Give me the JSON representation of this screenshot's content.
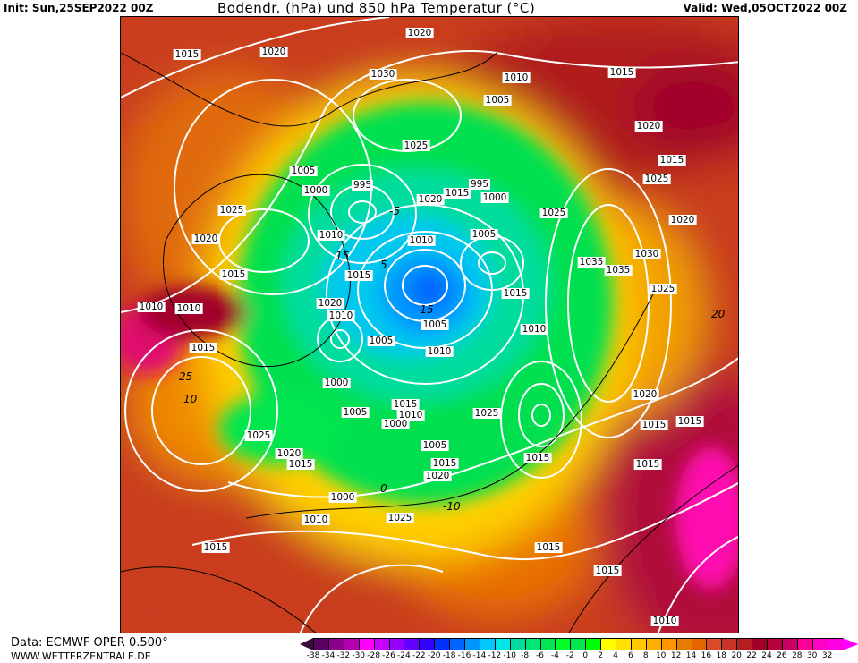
{
  "header": {
    "init": "Init: Sun,25SEP2022 00Z",
    "title": "Bodendr. (hPa) und 850 hPa Temperatur (°C)",
    "valid": "Valid: Wed,05OCT2022 00Z"
  },
  "footer": {
    "source": "Data: ECMWF OPER 0.500°",
    "site": "WWW.WETTERZENTRALE.DE"
  },
  "map": {
    "fields": [
      "surface pressure isobars (hPa)",
      "850 hPa temperature (°C)"
    ],
    "isobar_color": "#ffffff",
    "isotherm_color": "#000000",
    "pressure_labels": [
      "1015",
      "1020",
      "1020",
      "1030",
      "1010",
      "1015",
      "1005",
      "1020",
      "1025",
      "1005",
      "1015",
      "1000",
      "995",
      "995",
      "1025",
      "1020",
      "1015",
      "1000",
      "1025",
      "1025",
      "1020",
      "1020",
      "1010",
      "1010",
      "1005",
      "1035",
      "1035",
      "1030",
      "1015",
      "1015",
      "1025",
      "1015",
      "1010",
      "1010",
      "1020",
      "1010",
      "1005",
      "1010",
      "1005",
      "1015",
      "1010",
      "1000",
      "1015",
      "1010",
      "1005",
      "1000",
      "1025",
      "1020",
      "1015",
      "1015",
      "1025",
      "1005",
      "1020",
      "1015",
      "1015",
      "1020",
      "1015",
      "1015",
      "1000",
      "1010",
      "1025",
      "1015",
      "1015",
      "1015",
      "1010"
    ],
    "isotherm_labels": [
      "15",
      "10",
      "5",
      "0",
      "-5",
      "-10",
      "-15",
      "20",
      "25"
    ]
  },
  "colorbar": {
    "ticks": [
      "-38",
      "-34",
      "-32",
      "-30",
      "-28",
      "-26",
      "-24",
      "-22",
      "-20",
      "-18",
      "-16",
      "-14",
      "-12",
      "-10",
      "-8",
      "-6",
      "-4",
      "-2",
      "0",
      "2",
      "4",
      "6",
      "8",
      "10",
      "12",
      "14",
      "16",
      "18",
      "20",
      "22",
      "24",
      "26",
      "28",
      "30",
      "32"
    ],
    "low_arrow_color": "#3a0a3c",
    "high_arrow_color": "#ff00ff",
    "colors": [
      "#5a0062",
      "#8c008c",
      "#b400b4",
      "#ff00ff",
      "#c800ff",
      "#9600ff",
      "#6400ff",
      "#3200ff",
      "#0032ff",
      "#0064ff",
      "#0096ff",
      "#00c8ff",
      "#00e6e6",
      "#00dca0",
      "#00e678",
      "#00e650",
      "#00ff28",
      "#00e650",
      "#00ff00",
      "#ffff00",
      "#ffe100",
      "#ffc800",
      "#ffaf00",
      "#ff9600",
      "#e67d00",
      "#e66400",
      "#dc4b28",
      "#c83228",
      "#b41e1e",
      "#a00028",
      "#b4003c",
      "#c80064",
      "#ff0096",
      "#ff00c8",
      "#ff00e6"
    ]
  }
}
